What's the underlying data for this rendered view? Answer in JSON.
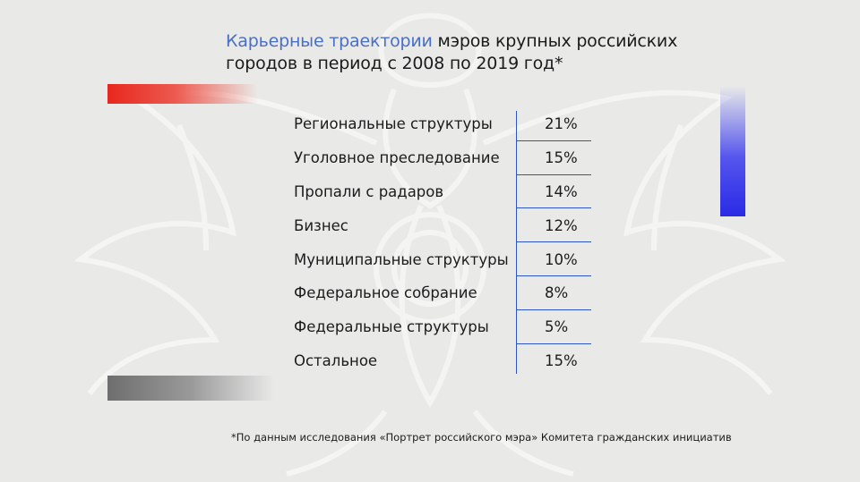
{
  "title": {
    "accent": "Карьерные траектории",
    "rest": " мэров крупных российских городов в период с 2008 по 2019 год*"
  },
  "chart_data": {
    "type": "table",
    "categories": [
      "Региональные структуры",
      "Уголовное преследование",
      "Пропали с радаров",
      "Бизнес",
      "Муниципальные структуры",
      "Федеральное собрание",
      "Федеральные структуры",
      "Остальное"
    ],
    "labels": [
      "21%",
      "15%",
      "14%",
      "12%",
      "10%",
      "8%",
      "5%",
      "15%"
    ],
    "values": [
      21,
      15,
      14,
      12,
      10,
      8,
      5,
      15
    ]
  },
  "footnote": "*По данным исследования «Портрет российского мэра» Комитета гражданских инициатив",
  "colors": {
    "accent": "#4a6fc6",
    "divider": "#2f55c4",
    "red": "#e8271e",
    "blue": "#2a2ae6",
    "gray": "#6e6e6e"
  }
}
